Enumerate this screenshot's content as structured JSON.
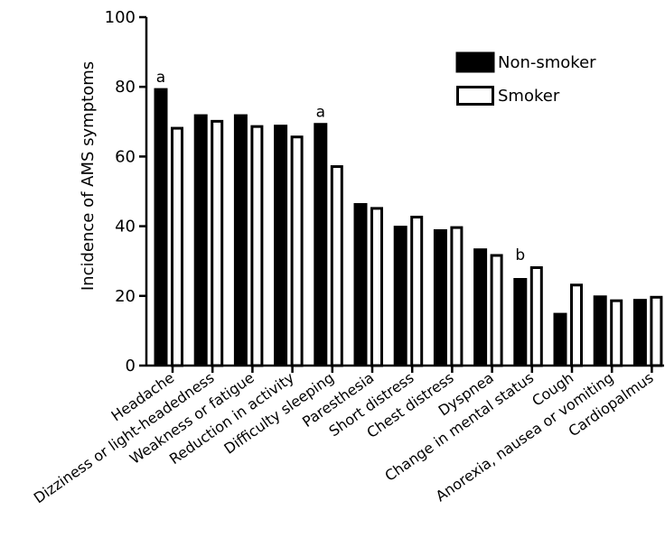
{
  "chart_data": {
    "type": "bar",
    "title": "",
    "xlabel": "",
    "ylabel": "Incidence of AMS symptoms",
    "ylim": [
      0,
      100
    ],
    "yticks": [
      0,
      20,
      40,
      60,
      80,
      100
    ],
    "grid": false,
    "legend_position": "top-right",
    "categories": [
      "Headache",
      "Dizziness or light-headedness",
      "Weakness or fatigue",
      "Reduction in activity",
      "Difficulty sleeping",
      "Paresthesia",
      "Short distress",
      "Chest distress",
      "Dyspnea",
      "Change in mental status",
      "Cough",
      "Anorexia, nausea or vomiting",
      "Cardiopalmus"
    ],
    "series": [
      {
        "name": "Non-smoker",
        "fill": "#000000",
        "values": [
          79.5,
          72,
          72,
          69,
          69.5,
          46.5,
          40,
          39,
          33.5,
          25,
          15,
          20,
          19
        ]
      },
      {
        "name": "Smoker",
        "fill": "#ffffff",
        "values": [
          68.5,
          70.5,
          69,
          66,
          57.5,
          45.5,
          43,
          40,
          32,
          28.5,
          23.5,
          19,
          20
        ]
      }
    ],
    "annotations": [
      {
        "category_index": 0,
        "text": "a"
      },
      {
        "category_index": 4,
        "text": "a"
      },
      {
        "category_index": 9,
        "text": "b"
      }
    ]
  }
}
